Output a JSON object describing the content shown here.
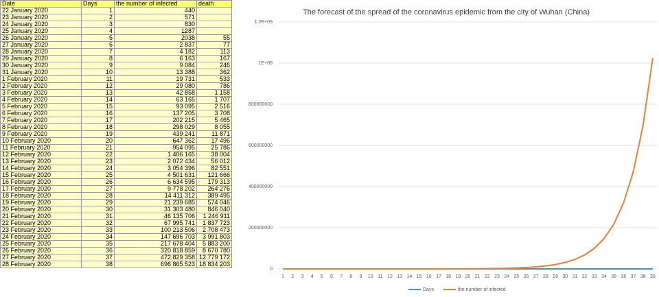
{
  "table": {
    "header": [
      "Date",
      "Days",
      "the number of infected",
      "death"
    ],
    "rows": [
      [
        "22 January 2020",
        1,
        "440",
        null
      ],
      [
        "23 January 2020",
        2,
        "571",
        null
      ],
      [
        "24 January 2020",
        3,
        "830",
        null
      ],
      [
        "25 January 2020",
        4,
        "1287",
        null
      ],
      [
        "26 January 2020",
        5,
        "2038",
        "55"
      ],
      [
        "27 January 2020",
        6,
        "2 837",
        "77"
      ],
      [
        "28 January 2020",
        7,
        "4 182",
        "113"
      ],
      [
        "29 January 2020",
        8,
        "6 163",
        "167"
      ],
      [
        "30 January 2020",
        9,
        "9 084",
        "246"
      ],
      [
        "31 January 2020",
        10,
        "13 388",
        "362"
      ],
      [
        "1 February 2020",
        11,
        "19 731",
        "533"
      ],
      [
        "2 February 2020",
        12,
        "29 080",
        "786"
      ],
      [
        "3 February 2020",
        13,
        "42 858",
        "1 158"
      ],
      [
        "4 February 2020",
        14,
        "63 165",
        "1 707"
      ],
      [
        "5 February 2020",
        15,
        "93 095",
        "2 516"
      ],
      [
        "6 February 2020",
        16,
        "137 205",
        "3 708"
      ],
      [
        "7 February 2020",
        17,
        "202 215",
        "5 465"
      ],
      [
        "8 February 2020",
        18,
        "298 029",
        "8 055"
      ],
      [
        "9 February 2020",
        19,
        "439 241",
        "11 871"
      ],
      [
        "10 February 2020",
        20,
        "647 362",
        "17 496"
      ],
      [
        "11 February 2020",
        21,
        "954 095",
        "25 786"
      ],
      [
        "12 February 2020",
        22,
        "1 406 165",
        "38 004"
      ],
      [
        "13 February 2020",
        23,
        "2 072 434",
        "56 012"
      ],
      [
        "14 February 2020",
        24,
        "3 054 396",
        "82 551"
      ],
      [
        "15 February 2020",
        25,
        "4 501 631",
        "121 666"
      ],
      [
        "16 February 2020",
        26,
        "6 634 595",
        "179 313"
      ],
      [
        "17 February 2020",
        27,
        "9 778 202",
        "264 276"
      ],
      [
        "18 February 2020",
        28,
        "14 411 312",
        "389 495"
      ],
      [
        "19 February 2020",
        29,
        "21 239 685",
        "574 046"
      ],
      [
        "20 February 2020",
        30,
        "31 303 480",
        "846 040"
      ],
      [
        "21 February 2020",
        31,
        "46 135 706",
        "1 246 911"
      ],
      [
        "22 February 2020",
        32,
        "67 995 741",
        "1 837 723"
      ],
      [
        "23 February 2020",
        33,
        "100 213 506",
        "2 708 473"
      ],
      [
        "24 February 2020",
        34,
        "147 696 703",
        "3 991 803"
      ],
      [
        "25 February 2020",
        35,
        "217 678 404",
        "5 883 200"
      ],
      [
        "26 February 2020",
        36,
        "320 818 859",
        "8 670 780"
      ],
      [
        "27 February 2020",
        37,
        "472 829 358",
        "12 779 172"
      ],
      [
        "28 February 2020",
        38,
        "696 865 523",
        "18 834 203"
      ]
    ]
  },
  "chart_data": {
    "type": "line",
    "title": "The forecast of the spread of the coronavirus epidemic from the city of Wuhan (China)",
    "categories": [
      "1",
      "2",
      "3",
      "4",
      "5",
      "6",
      "7",
      "8",
      "9",
      "10",
      "11",
      "12",
      "13",
      "14",
      "15",
      "16",
      "17",
      "18",
      "19",
      "20",
      "21",
      "22",
      "23",
      "24",
      "25",
      "26",
      "27",
      "28",
      "29",
      "30",
      "31",
      "32",
      "33",
      "34",
      "35",
      "36",
      "37",
      "38",
      "39"
    ],
    "series": [
      {
        "name": "Days",
        "color": "#4a90c8",
        "values": [
          1,
          2,
          3,
          4,
          5,
          6,
          7,
          8,
          9,
          10,
          11,
          12,
          13,
          14,
          15,
          16,
          17,
          18,
          19,
          20,
          21,
          22,
          23,
          24,
          25,
          26,
          27,
          28,
          29,
          30,
          31,
          32,
          33,
          34,
          35,
          36,
          37,
          38,
          39
        ]
      },
      {
        "name": "the number of infected",
        "color": "#ed7d31",
        "values": [
          440,
          571,
          830,
          1287,
          2038,
          2837,
          4182,
          6163,
          9084,
          13388,
          19731,
          29080,
          42858,
          63165,
          93095,
          137205,
          202215,
          298029,
          439241,
          647362,
          954095,
          1406165,
          2072434,
          3054396,
          4501631,
          6634595,
          9778202,
          14411312,
          21239685,
          31303480,
          46135706,
          67995741,
          100213506,
          147696703,
          217678404,
          320818859,
          472829358,
          696865523,
          1025000000
        ]
      }
    ],
    "ylim": [
      0,
      1200000000
    ],
    "yticks": [
      0,
      200000000,
      400000000,
      600000000,
      800000000,
      {
        "value": 1000000000,
        "label": "1E+09"
      },
      {
        "value": 1200000000,
        "label": "1.2E+09"
      }
    ],
    "grid": true,
    "legend": "bottom"
  }
}
